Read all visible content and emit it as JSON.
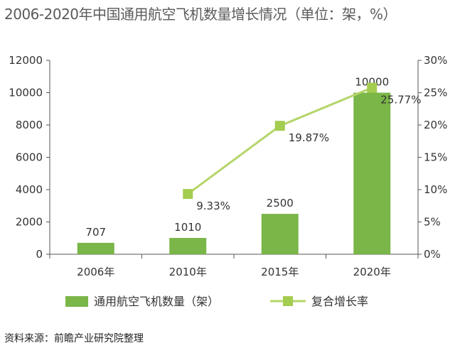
{
  "chart_data": {
    "type": "bar",
    "title": "2006-2020年中国通用航空飞机数量增长情况（单位：架，%）",
    "categories": [
      "2006年",
      "2010年",
      "2015年",
      "2020年"
    ],
    "series": [
      {
        "name": "通用航空飞机数量（架）",
        "type": "bar",
        "axis": "left",
        "values": [
          707,
          1010,
          2500,
          10000
        ],
        "labels": [
          "707",
          "1010",
          "2500",
          "10000"
        ],
        "color": "#7ab648"
      },
      {
        "name": "复合增长率",
        "type": "line",
        "axis": "right",
        "values": [
          null,
          9.33,
          19.87,
          25.77
        ],
        "labels": [
          "",
          "9.33%",
          "19.87%",
          "25.77%"
        ],
        "color": "#b5d56a"
      }
    ],
    "y_left": {
      "min": 0,
      "max": 12000,
      "ticks": [
        "0",
        "2000",
        "4000",
        "6000",
        "8000",
        "10000",
        "12000"
      ]
    },
    "y_right": {
      "min": 0,
      "max": 30,
      "ticks": [
        "0%",
        "5%",
        "10%",
        "15%",
        "20%",
        "25%",
        "30%"
      ]
    },
    "grid": false,
    "legend_position": "bottom"
  },
  "footer": {
    "source": "资料来源：前瞻产业研究院整理"
  }
}
